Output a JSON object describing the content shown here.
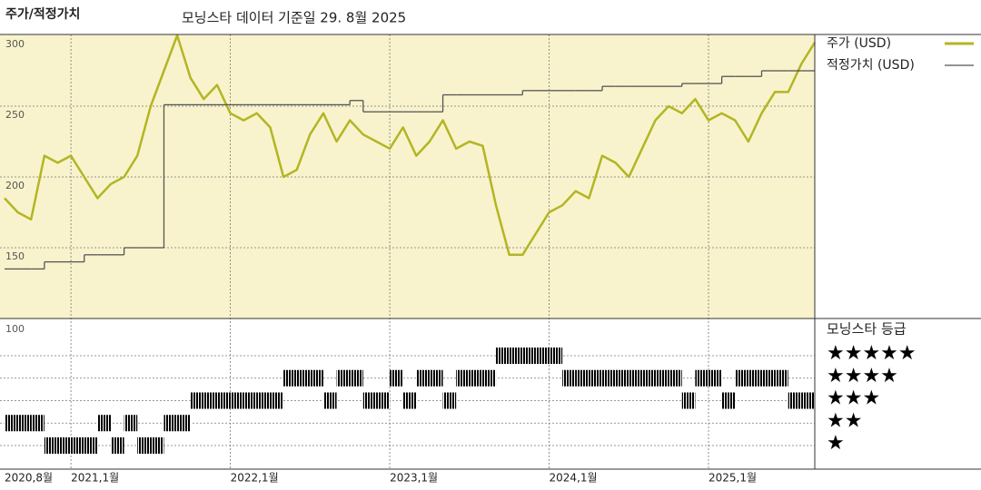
{
  "chart_data": [
    {
      "type": "line",
      "title": "주가/적정가치",
      "subtitle": "모닝스타 데이터 기준일 29. 8월 2025",
      "x": [
        "2020-08",
        "2020-09",
        "2020-10",
        "2020-11",
        "2020-12",
        "2021-01",
        "2021-02",
        "2021-03",
        "2021-04",
        "2021-05",
        "2021-06",
        "2021-07",
        "2021-08",
        "2021-09",
        "2021-10",
        "2021-11",
        "2021-12",
        "2022-01",
        "2022-02",
        "2022-03",
        "2022-04",
        "2022-05",
        "2022-06",
        "2022-07",
        "2022-08",
        "2022-09",
        "2022-10",
        "2022-11",
        "2022-12",
        "2023-01",
        "2023-02",
        "2023-03",
        "2023-04",
        "2023-05",
        "2023-06",
        "2023-07",
        "2023-08",
        "2023-09",
        "2023-10",
        "2023-11",
        "2023-12",
        "2024-01",
        "2024-02",
        "2024-03",
        "2024-04",
        "2024-05",
        "2024-06",
        "2024-07",
        "2024-08",
        "2024-09",
        "2024-10",
        "2024-11",
        "2024-12",
        "2025-01",
        "2025-02",
        "2025-03",
        "2025-04",
        "2025-05",
        "2025-06",
        "2025-07",
        "2025-08",
        "2025-09"
      ],
      "xlim": [
        "2020-08",
        "2025-09"
      ],
      "ylim": [
        100,
        300
      ],
      "yticks": [
        150,
        200,
        250,
        300
      ],
      "grid": true,
      "background": "#f8f3cc",
      "series": [
        {
          "name": "주가 (USD)",
          "color": "#b3b524",
          "style": "line",
          "values": [
            185,
            175,
            170,
            215,
            210,
            215,
            200,
            185,
            195,
            200,
            215,
            250,
            275,
            300,
            270,
            255,
            265,
            245,
            240,
            245,
            235,
            200,
            205,
            230,
            245,
            225,
            240,
            230,
            225,
            220,
            235,
            215,
            225,
            240,
            220,
            225,
            222,
            180,
            145,
            145,
            160,
            175,
            180,
            190,
            185,
            215,
            210,
            200,
            220,
            240,
            250,
            245,
            255,
            240,
            245,
            240,
            225,
            245,
            260,
            260,
            280,
            295
          ]
        },
        {
          "name": "적정가치 (USD)",
          "color": "#555555",
          "style": "step",
          "values": [
            135,
            135,
            135,
            140,
            140,
            140,
            145,
            145,
            145,
            150,
            150,
            150,
            251,
            251,
            251,
            251,
            251,
            251,
            251,
            251,
            251,
            251,
            251,
            251,
            251,
            251,
            254,
            246,
            246,
            246,
            246,
            246,
            246,
            258,
            258,
            258,
            258,
            258,
            258,
            261,
            261,
            261,
            261,
            261,
            261,
            264,
            264,
            264,
            264,
            264,
            264,
            266,
            266,
            266,
            271,
            271,
            271,
            275,
            275,
            275,
            275,
            275
          ]
        }
      ]
    },
    {
      "type": "rating",
      "title": "모닝스타 등급",
      "top_label": "100",
      "categories": [
        "★★★★★",
        "★★★★",
        "★★★",
        "★★",
        "★"
      ],
      "colors": [
        "#2f8a6a",
        "#333333",
        "#333333",
        "#333333",
        "#333333"
      ],
      "x": [
        "2020-08",
        "2020-09",
        "2020-10",
        "2020-11",
        "2020-12",
        "2021-01",
        "2021-02",
        "2021-03",
        "2021-04",
        "2021-05",
        "2021-06",
        "2021-07",
        "2021-08",
        "2021-09",
        "2021-10",
        "2021-11",
        "2021-12",
        "2022-01",
        "2022-02",
        "2022-03",
        "2022-04",
        "2022-05",
        "2022-06",
        "2022-07",
        "2022-08",
        "2022-09",
        "2022-10",
        "2022-11",
        "2022-12",
        "2023-01",
        "2023-02",
        "2023-03",
        "2023-04",
        "2023-05",
        "2023-06",
        "2023-07",
        "2023-08",
        "2023-09",
        "2023-10",
        "2023-11",
        "2023-12",
        "2024-01",
        "2024-02",
        "2024-03",
        "2024-04",
        "2024-05",
        "2024-06",
        "2024-07",
        "2024-08",
        "2024-09",
        "2024-10",
        "2024-11",
        "2024-12",
        "2025-01",
        "2025-02",
        "2025-03",
        "2025-04",
        "2025-05",
        "2025-06",
        "2025-07",
        "2025-08",
        "2025-09"
      ],
      "xlim": [
        "2020-08",
        "2025-09"
      ],
      "xticks": [
        {
          "value": "2020-08",
          "label": "2020,8월"
        },
        {
          "value": "2021-01",
          "label": "2021,1월"
        },
        {
          "value": "2022-01",
          "label": "2022,1월"
        },
        {
          "value": "2023-01",
          "label": "2023,1월"
        },
        {
          "value": "2024-01",
          "label": "2024,1월"
        },
        {
          "value": "2025-01",
          "label": "2025,1월"
        }
      ],
      "values": [
        2,
        2,
        2,
        1,
        1,
        1,
        1,
        2,
        1,
        2,
        1,
        1,
        2,
        2,
        3,
        3,
        3,
        3,
        3,
        3,
        3,
        4,
        4,
        4,
        3,
        4,
        4,
        3,
        3,
        4,
        3,
        4,
        4,
        3,
        4,
        4,
        4,
        5,
        5,
        5,
        5,
        5,
        4,
        4,
        4,
        4,
        4,
        4,
        4,
        4,
        4,
        3,
        4,
        4,
        3,
        4,
        4,
        4,
        4,
        3,
        3,
        3
      ]
    }
  ]
}
